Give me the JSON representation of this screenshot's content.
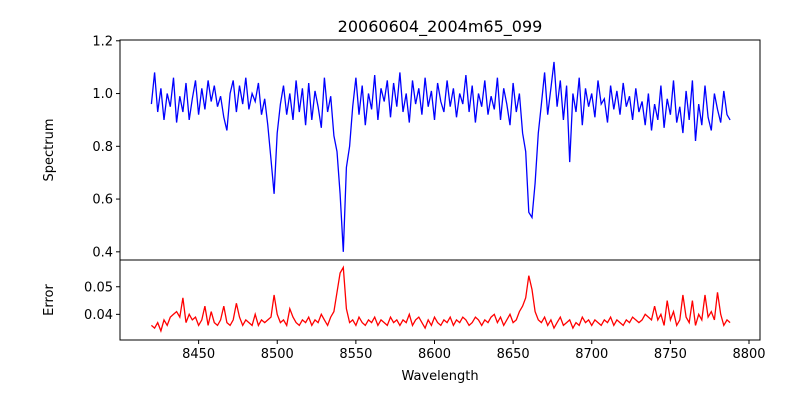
{
  "chart_data": [
    {
      "type": "line",
      "panel": "top",
      "title": "20060604_2004m65_099",
      "xlabel": "",
      "ylabel": "Spectrum",
      "xlim": [
        8400,
        8807
      ],
      "ylim": [
        0.369,
        1.203
      ],
      "yticks": [
        0.4,
        0.6,
        0.8,
        1.0,
        1.2
      ],
      "ytick_labels": [
        "0.4",
        "0.6",
        "0.8",
        "1.0",
        "1.2"
      ],
      "grid": false,
      "color": "#0000ff",
      "x_start": 8420,
      "x_step": 2,
      "values": [
        0.96,
        1.08,
        0.93,
        1.02,
        0.9,
        1.0,
        0.95,
        1.06,
        0.89,
        0.99,
        0.93,
        1.04,
        0.9,
        0.98,
        1.05,
        0.92,
        1.02,
        0.94,
        1.05,
        0.97,
        1.03,
        0.95,
        0.99,
        0.91,
        0.86,
        1.0,
        1.05,
        0.93,
        1.03,
        0.96,
        1.06,
        0.94,
        1.0,
        0.97,
        1.04,
        0.92,
        0.98,
        0.88,
        0.75,
        0.62,
        0.85,
        0.96,
        1.03,
        0.92,
        1.0,
        0.9,
        1.05,
        0.93,
        1.02,
        0.88,
        1.04,
        0.9,
        1.01,
        0.95,
        0.87,
        1.06,
        0.93,
        0.99,
        0.84,
        0.78,
        0.62,
        0.4,
        0.72,
        0.8,
        0.95,
        1.06,
        0.92,
        1.03,
        0.88,
        1.0,
        0.94,
        1.07,
        0.9,
        1.02,
        0.97,
        1.05,
        0.91,
        1.04,
        0.95,
        1.08,
        0.93,
        1.0,
        0.89,
        1.05,
        0.96,
        1.02,
        0.92,
        1.06,
        0.95,
        1.01,
        0.9,
        1.04,
        0.97,
        0.93,
        1.05,
        0.95,
        1.02,
        0.91,
        1.0,
        0.96,
        1.07,
        0.93,
        1.03,
        0.89,
        1.0,
        0.95,
        1.05,
        0.92,
        0.99,
        0.94,
        1.06,
        0.9,
        1.02,
        0.96,
        0.88,
        1.04,
        0.93,
        1.0,
        0.85,
        0.78,
        0.55,
        0.53,
        0.66,
        0.85,
        0.96,
        1.08,
        0.92,
        1.02,
        1.12,
        0.95,
        1.05,
        0.9,
        1.03,
        0.74,
        1.0,
        0.93,
        1.06,
        0.88,
        1.02,
        0.95,
        1.0,
        0.91,
        1.05,
        0.96,
        0.98,
        0.89,
        1.03,
        0.94,
        1.01,
        0.92,
        1.04,
        0.95,
        0.99,
        0.9,
        1.02,
        0.93,
        0.97,
        0.88,
        1.0,
        0.86,
        0.96,
        0.9,
        1.03,
        0.87,
        0.98,
        0.92,
        1.05,
        0.89,
        0.95,
        0.85,
        1.01,
        0.9,
        1.05,
        0.82,
        0.96,
        0.88,
        1.03,
        0.91,
        0.86,
        1.0,
        0.94,
        0.89,
        1.01,
        0.92,
        0.9
      ]
    },
    {
      "type": "line",
      "panel": "bottom",
      "xlabel": "Wavelength",
      "ylabel": "Error",
      "xlim": [
        8400,
        8807
      ],
      "ylim": [
        0.0307,
        0.0597
      ],
      "xticks": [
        8450,
        8500,
        8550,
        8600,
        8650,
        8700,
        8750,
        8800
      ],
      "xtick_labels": [
        "8450",
        "8500",
        "8550",
        "8600",
        "8650",
        "8700",
        "8750",
        "8800"
      ],
      "yticks": [
        0.04,
        0.05
      ],
      "ytick_labels": [
        "0.04",
        "0.05"
      ],
      "grid": false,
      "color": "#ff0000",
      "x_start": 8420,
      "x_step": 2,
      "values": [
        0.036,
        0.035,
        0.037,
        0.034,
        0.038,
        0.036,
        0.039,
        0.04,
        0.041,
        0.039,
        0.046,
        0.037,
        0.04,
        0.038,
        0.039,
        0.036,
        0.038,
        0.043,
        0.036,
        0.041,
        0.037,
        0.036,
        0.038,
        0.043,
        0.037,
        0.036,
        0.038,
        0.044,
        0.039,
        0.036,
        0.038,
        0.037,
        0.036,
        0.04,
        0.036,
        0.038,
        0.037,
        0.038,
        0.039,
        0.047,
        0.04,
        0.037,
        0.038,
        0.036,
        0.042,
        0.039,
        0.037,
        0.036,
        0.038,
        0.037,
        0.039,
        0.036,
        0.038,
        0.037,
        0.04,
        0.038,
        0.036,
        0.039,
        0.041,
        0.048,
        0.055,
        0.057,
        0.042,
        0.037,
        0.038,
        0.036,
        0.039,
        0.037,
        0.036,
        0.038,
        0.037,
        0.039,
        0.036,
        0.038,
        0.037,
        0.036,
        0.039,
        0.037,
        0.038,
        0.036,
        0.038,
        0.037,
        0.04,
        0.036,
        0.038,
        0.039,
        0.037,
        0.035,
        0.038,
        0.036,
        0.039,
        0.037,
        0.036,
        0.038,
        0.037,
        0.039,
        0.036,
        0.038,
        0.037,
        0.039,
        0.038,
        0.036,
        0.037,
        0.039,
        0.038,
        0.036,
        0.038,
        0.037,
        0.039,
        0.04,
        0.037,
        0.039,
        0.036,
        0.038,
        0.04,
        0.037,
        0.038,
        0.041,
        0.043,
        0.046,
        0.054,
        0.049,
        0.041,
        0.038,
        0.037,
        0.039,
        0.036,
        0.038,
        0.035,
        0.037,
        0.039,
        0.036,
        0.037,
        0.038,
        0.035,
        0.037,
        0.036,
        0.039,
        0.037,
        0.038,
        0.036,
        0.038,
        0.037,
        0.036,
        0.038,
        0.037,
        0.039,
        0.036,
        0.038,
        0.037,
        0.036,
        0.038,
        0.037,
        0.039,
        0.038,
        0.037,
        0.038,
        0.04,
        0.039,
        0.038,
        0.043,
        0.038,
        0.04,
        0.036,
        0.045,
        0.038,
        0.041,
        0.036,
        0.038,
        0.047,
        0.039,
        0.037,
        0.045,
        0.036,
        0.04,
        0.038,
        0.047,
        0.039,
        0.041,
        0.038,
        0.048,
        0.04,
        0.036,
        0.038,
        0.037
      ]
    }
  ]
}
